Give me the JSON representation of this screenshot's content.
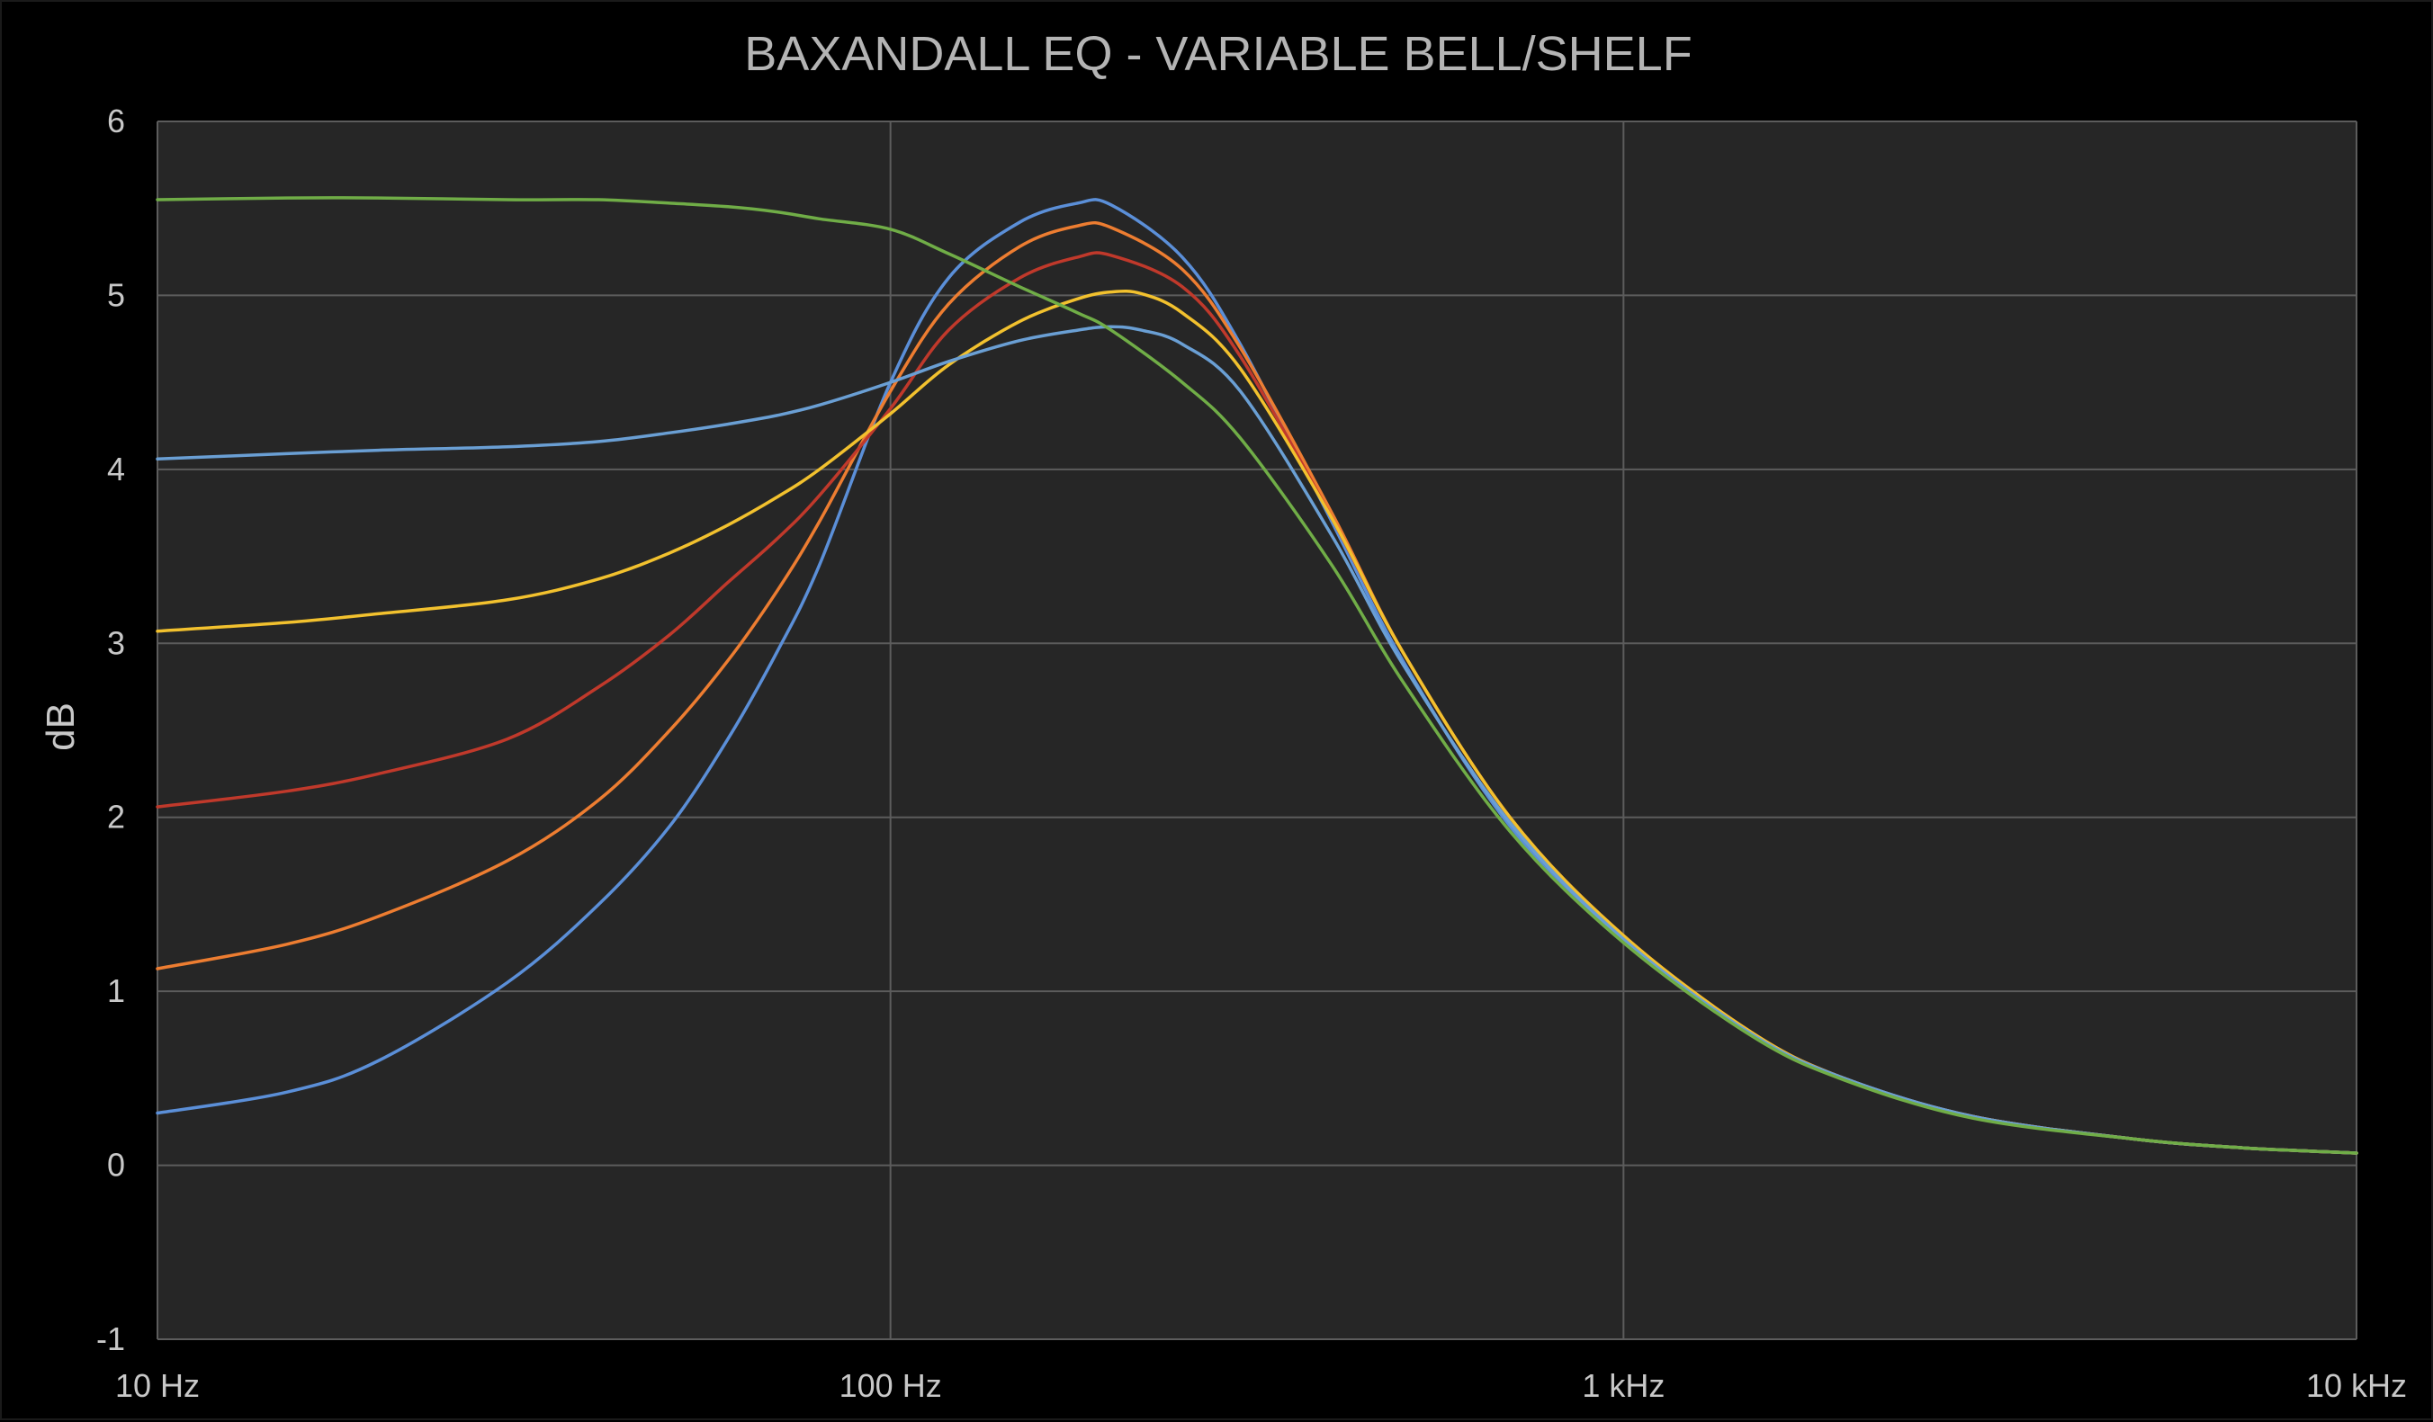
{
  "chart_data": {
    "type": "line",
    "title": "BAXANDALL EQ - VARIABLE BELL/SHELF",
    "xlabel": "",
    "ylabel": "dB",
    "x_scale": "log",
    "xlim": [
      10,
      10000
    ],
    "ylim": [
      -1,
      6
    ],
    "x_ticks": [
      {
        "value": 10,
        "label": "10 Hz"
      },
      {
        "value": 100,
        "label": "100 Hz"
      },
      {
        "value": 1000,
        "label": "1 kHz"
      },
      {
        "value": 10000,
        "label": "10 kHz"
      }
    ],
    "y_ticks": [
      {
        "value": 6,
        "label": "6"
      },
      {
        "value": 5,
        "label": "5"
      },
      {
        "value": 4,
        "label": "4"
      },
      {
        "value": 3,
        "label": "3"
      },
      {
        "value": 2,
        "label": "2"
      },
      {
        "value": 1,
        "label": "1"
      },
      {
        "value": 0,
        "label": "0"
      },
      {
        "value": -1,
        "label": "-1"
      }
    ],
    "grid": true,
    "legend": "none",
    "colors": {
      "background": "#000000",
      "plot_background": "#262626",
      "grid": "#5c5c5c"
    },
    "series": [
      {
        "color": "#5b8fd8",
        "points": [
          [
            10,
            0.3
          ],
          [
            15,
            0.42
          ],
          [
            20,
            0.6
          ],
          [
            30,
            1.05
          ],
          [
            40,
            1.5
          ],
          [
            50,
            1.95
          ],
          [
            60,
            2.45
          ],
          [
            70,
            2.95
          ],
          [
            80,
            3.45
          ],
          [
            100,
            4.5
          ],
          [
            120,
            5.1
          ],
          [
            150,
            5.42
          ],
          [
            180,
            5.53
          ],
          [
            200,
            5.52
          ],
          [
            250,
            5.22
          ],
          [
            300,
            4.72
          ],
          [
            400,
            3.7
          ],
          [
            500,
            2.9
          ],
          [
            700,
            1.95
          ],
          [
            1000,
            1.3
          ],
          [
            1500,
            0.75
          ],
          [
            2000,
            0.5
          ],
          [
            3000,
            0.28
          ],
          [
            5000,
            0.15
          ],
          [
            7000,
            0.1
          ],
          [
            10000,
            0.07
          ]
        ]
      },
      {
        "color": "#ed7d31",
        "points": [
          [
            10,
            1.13
          ],
          [
            15,
            1.27
          ],
          [
            20,
            1.43
          ],
          [
            30,
            1.75
          ],
          [
            40,
            2.1
          ],
          [
            50,
            2.5
          ],
          [
            60,
            2.9
          ],
          [
            70,
            3.3
          ],
          [
            80,
            3.7
          ],
          [
            100,
            4.45
          ],
          [
            120,
            4.95
          ],
          [
            150,
            5.28
          ],
          [
            180,
            5.4
          ],
          [
            200,
            5.39
          ],
          [
            250,
            5.15
          ],
          [
            300,
            4.7
          ],
          [
            400,
            3.75
          ],
          [
            500,
            2.95
          ],
          [
            700,
            2.0
          ],
          [
            1000,
            1.32
          ],
          [
            1500,
            0.76
          ],
          [
            2000,
            0.5
          ],
          [
            3000,
            0.28
          ],
          [
            5000,
            0.15
          ],
          [
            7000,
            0.1
          ],
          [
            10000,
            0.07
          ]
        ]
      },
      {
        "color": "#c0392b",
        "points": [
          [
            10,
            2.06
          ],
          [
            15,
            2.15
          ],
          [
            20,
            2.25
          ],
          [
            30,
            2.45
          ],
          [
            40,
            2.75
          ],
          [
            50,
            3.05
          ],
          [
            60,
            3.35
          ],
          [
            70,
            3.6
          ],
          [
            80,
            3.85
          ],
          [
            100,
            4.35
          ],
          [
            120,
            4.8
          ],
          [
            150,
            5.1
          ],
          [
            180,
            5.22
          ],
          [
            200,
            5.23
          ],
          [
            250,
            5.05
          ],
          [
            300,
            4.65
          ],
          [
            400,
            3.72
          ],
          [
            500,
            2.95
          ],
          [
            700,
            2.0
          ],
          [
            1000,
            1.32
          ],
          [
            1500,
            0.76
          ],
          [
            2000,
            0.5
          ],
          [
            3000,
            0.28
          ],
          [
            5000,
            0.15
          ],
          [
            7000,
            0.1
          ],
          [
            10000,
            0.07
          ]
        ]
      },
      {
        "color": "#f2c12e",
        "points": [
          [
            10,
            3.07
          ],
          [
            15,
            3.12
          ],
          [
            20,
            3.17
          ],
          [
            30,
            3.25
          ],
          [
            40,
            3.37
          ],
          [
            50,
            3.52
          ],
          [
            60,
            3.68
          ],
          [
            70,
            3.84
          ],
          [
            80,
            4.0
          ],
          [
            100,
            4.32
          ],
          [
            120,
            4.6
          ],
          [
            150,
            4.85
          ],
          [
            180,
            4.98
          ],
          [
            200,
            5.02
          ],
          [
            220,
            5.01
          ],
          [
            250,
            4.9
          ],
          [
            300,
            4.58
          ],
          [
            400,
            3.72
          ],
          [
            500,
            2.95
          ],
          [
            700,
            2.0
          ],
          [
            1000,
            1.32
          ],
          [
            1500,
            0.76
          ],
          [
            2000,
            0.5
          ],
          [
            3000,
            0.28
          ],
          [
            5000,
            0.15
          ],
          [
            7000,
            0.1
          ],
          [
            10000,
            0.07
          ]
        ]
      },
      {
        "color": "#6a9fd4",
        "points": [
          [
            10,
            4.06
          ],
          [
            15,
            4.09
          ],
          [
            20,
            4.11
          ],
          [
            30,
            4.13
          ],
          [
            40,
            4.16
          ],
          [
            50,
            4.21
          ],
          [
            60,
            4.26
          ],
          [
            70,
            4.31
          ],
          [
            80,
            4.37
          ],
          [
            100,
            4.5
          ],
          [
            120,
            4.62
          ],
          [
            150,
            4.74
          ],
          [
            180,
            4.8
          ],
          [
            200,
            4.82
          ],
          [
            220,
            4.8
          ],
          [
            250,
            4.72
          ],
          [
            300,
            4.45
          ],
          [
            400,
            3.62
          ],
          [
            500,
            2.88
          ],
          [
            700,
            1.97
          ],
          [
            1000,
            1.3
          ],
          [
            1500,
            0.75
          ],
          [
            2000,
            0.5
          ],
          [
            3000,
            0.28
          ],
          [
            5000,
            0.15
          ],
          [
            7000,
            0.1
          ],
          [
            10000,
            0.07
          ]
        ]
      },
      {
        "color": "#70ad47",
        "points": [
          [
            10,
            5.55
          ],
          [
            15,
            5.56
          ],
          [
            20,
            5.56
          ],
          [
            30,
            5.55
          ],
          [
            40,
            5.55
          ],
          [
            50,
            5.53
          ],
          [
            60,
            5.51
          ],
          [
            70,
            5.48
          ],
          [
            80,
            5.44
          ],
          [
            100,
            5.38
          ],
          [
            120,
            5.24
          ],
          [
            150,
            5.05
          ],
          [
            180,
            4.9
          ],
          [
            200,
            4.8
          ],
          [
            250,
            4.5
          ],
          [
            300,
            4.18
          ],
          [
            400,
            3.45
          ],
          [
            500,
            2.78
          ],
          [
            700,
            1.92
          ],
          [
            1000,
            1.28
          ],
          [
            1500,
            0.74
          ],
          [
            2000,
            0.49
          ],
          [
            3000,
            0.27
          ],
          [
            5000,
            0.15
          ],
          [
            7000,
            0.1
          ],
          [
            10000,
            0.07
          ]
        ]
      }
    ]
  }
}
